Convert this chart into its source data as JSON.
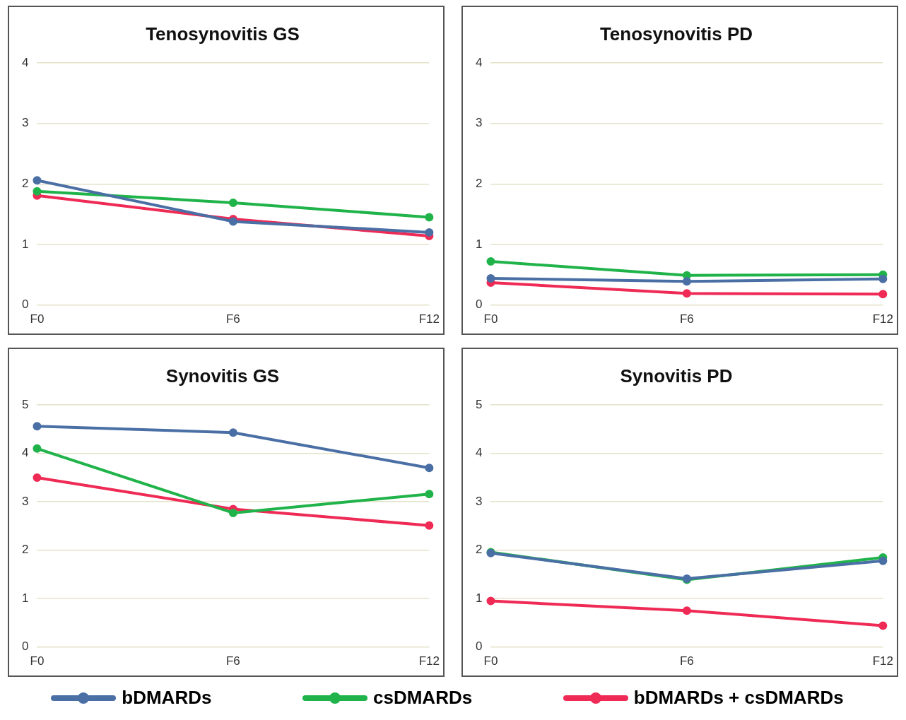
{
  "chart_data": [
    {
      "type": "line",
      "title": "Tenosynovitis GS",
      "categories": [
        "F0",
        "F6",
        "F12"
      ],
      "ylim": [
        0,
        4
      ],
      "yticks": [
        0,
        1,
        2,
        3,
        4
      ],
      "grid": "y",
      "marker": "circle",
      "legend": "bottom",
      "series": [
        {
          "name": "bDMARDs",
          "color": "#4a6fa5",
          "values": [
            2.06,
            1.38,
            1.2
          ]
        },
        {
          "name": "csDMARDs",
          "color": "#1fb34a",
          "values": [
            1.88,
            1.69,
            1.45
          ]
        },
        {
          "name": "bDMARDs + csDMARDs",
          "color": "#ee2a55",
          "values": [
            1.81,
            1.42,
            1.14
          ]
        }
      ]
    },
    {
      "type": "line",
      "title": "Tenosynovitis PD",
      "categories": [
        "F0",
        "F6",
        "F12"
      ],
      "ylim": [
        0,
        4
      ],
      "yticks": [
        0,
        1,
        2,
        3,
        4
      ],
      "grid": "y",
      "marker": "circle",
      "series": [
        {
          "color": "#4a6fa5",
          "values": [
            0.44,
            0.39,
            0.43
          ]
        },
        {
          "color": "#1fb34a",
          "values": [
            0.72,
            0.49,
            0.5
          ]
        },
        {
          "color": "#ee2a55",
          "values": [
            0.37,
            0.19,
            0.18
          ]
        }
      ]
    },
    {
      "type": "line",
      "title": "Synovitis GS",
      "categories": [
        "F0",
        "F6",
        "F12"
      ],
      "ylim": [
        0,
        5
      ],
      "yticks": [
        0,
        1,
        2,
        3,
        4,
        5
      ],
      "grid": "y",
      "marker": "circle",
      "series": [
        {
          "color": "#4a6fa5",
          "values": [
            4.56,
            4.43,
            3.7
          ]
        },
        {
          "color": "#1fb34a",
          "values": [
            4.1,
            2.77,
            3.16
          ]
        },
        {
          "color": "#ee2a55",
          "values": [
            3.5,
            2.85,
            2.51
          ]
        }
      ]
    },
    {
      "type": "line",
      "title": "Synovitis PD",
      "categories": [
        "F0",
        "F6",
        "F12"
      ],
      "ylim": [
        0,
        5
      ],
      "yticks": [
        0,
        1,
        2,
        3,
        4,
        5
      ],
      "grid": "y",
      "marker": "circle",
      "series": [
        {
          "color": "#4a6fa5",
          "values": [
            1.94,
            1.41,
            1.78
          ]
        },
        {
          "color": "#1fb34a",
          "values": [
            1.96,
            1.39,
            1.85
          ]
        },
        {
          "color": "#ee2a55",
          "values": [
            0.95,
            0.75,
            0.44
          ]
        }
      ]
    }
  ]
}
